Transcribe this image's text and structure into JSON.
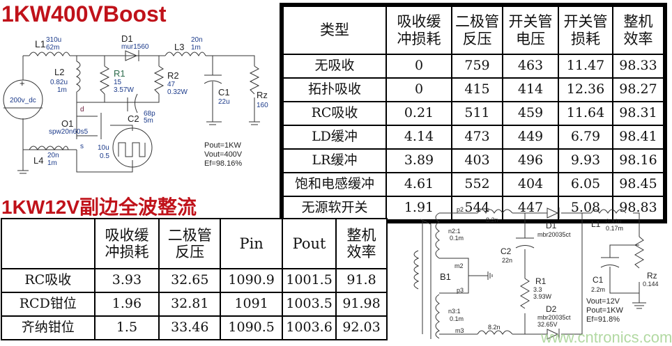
{
  "boost": {
    "title": "1KW400VBoost",
    "labels": {
      "L1": "L1",
      "L1_val": "310u",
      "L1_esr": "62m",
      "D1": "D1",
      "D1_val": "mur1560",
      "L3": "L3",
      "L3_val": "20n",
      "L3_esr": "1m",
      "L2": "L2",
      "L2_val": "0.82u",
      "L2_esr": "1m",
      "R1": "R1",
      "R1_val": "15",
      "R1_pwr": "3.57W",
      "R2": "R2",
      "R2_val": "47",
      "R2_pwr": "0.32W",
      "C1": "C1",
      "C1_val": "22u",
      "Rz": "Rz",
      "Rz_val": "160",
      "src": "200v_dc",
      "d": "d",
      "s": "s",
      "Q1": "O1",
      "Q1_val": "spw20n60s5",
      "C2": "C2",
      "C2_val": "68p",
      "C2_esr": "5m",
      "pulse_val": "10u",
      "pulse_duty": "0.5",
      "L4": "L4",
      "L4_val": "20n",
      "L4_esr": "1m",
      "pout": "Pout=1KW",
      "vout": "Vout=400V",
      "ef": "Ef=98.16%"
    },
    "table": {
      "headers": [
        [
          "类型"
        ],
        [
          "吸收缓",
          "冲损耗"
        ],
        [
          "二极管",
          "反压"
        ],
        [
          "开关管",
          "电压"
        ],
        [
          "开关管",
          "损耗"
        ],
        [
          "整机",
          "效率"
        ]
      ],
      "rows": [
        [
          "无吸收",
          "0",
          "759",
          "463",
          "11.47",
          "98.33"
        ],
        [
          "拓扑吸收",
          "0",
          "415",
          "414",
          "12.36",
          "98.27"
        ],
        [
          "RC吸收",
          "0.21",
          "511",
          "459",
          "11.64",
          "98.31"
        ],
        [
          "LD缓冲",
          "4.14",
          "473",
          "449",
          "6.79",
          "98.41"
        ],
        [
          "LR缓冲",
          "3.89",
          "403",
          "496",
          "9.93",
          "98.16"
        ],
        [
          "饱和电感缓冲",
          "4.61",
          "552",
          "404",
          "6.05",
          "98.45"
        ],
        [
          "无源软开关",
          "1.91",
          "544",
          "447",
          "5.08",
          "98.83"
        ]
      ]
    }
  },
  "rect12v": {
    "title": "1KW12V副边全波整流",
    "table": {
      "headers": [
        [
          ""
        ],
        [
          "吸收缓",
          "冲损耗"
        ],
        [
          "二极管",
          "反压"
        ],
        [
          "Pin"
        ],
        [
          "Pout"
        ],
        [
          "整机",
          "效率"
        ]
      ],
      "rows": [
        [
          "RC吸收",
          "3.93",
          "32.65",
          "1090.9",
          "1001.5",
          "91.8"
        ],
        [
          "RCD钳位",
          "1.96",
          "32.81",
          "1091",
          "1003.5",
          "91.98"
        ],
        [
          "齐纳钳位",
          "1.5",
          "33.46",
          "1090.5",
          "1003.6",
          "92.03"
        ]
      ]
    },
    "labels": {
      "p2": "p2",
      "m2": "m2",
      "p3": "p3",
      "m3": "m3",
      "B1": "B1",
      "n2": "n2:1",
      "n2_esr": "0.1m",
      "n3": "n3:1",
      "n3_esr": "0.1m",
      "Lp_val": "8.2n",
      "Lm_val": "8.2n",
      "D1": "D1",
      "D1_val": "mbr20035ct",
      "D2": "D2",
      "D2_val": "mbr20035ct",
      "D2_v": "32.65V",
      "C2": "C2",
      "C2_val": "22n",
      "R1": "R1",
      "R1_val": "3.3",
      "R1_pwr": "3.93W",
      "L1": "L1",
      "L1_val": "0.31u",
      "L1_esr": "0.17m",
      "C1": "C1",
      "C1_val": "2.2m",
      "Rz": "Rz",
      "Rz_val": "0.144",
      "vout": "Vout=12V",
      "pout": "Pout=1KW",
      "ef": "Ef=91.8%"
    }
  },
  "watermark": "www.cntronics.com",
  "colors": {
    "title": "#c0121a",
    "component_label": "#1b3a8a"
  }
}
